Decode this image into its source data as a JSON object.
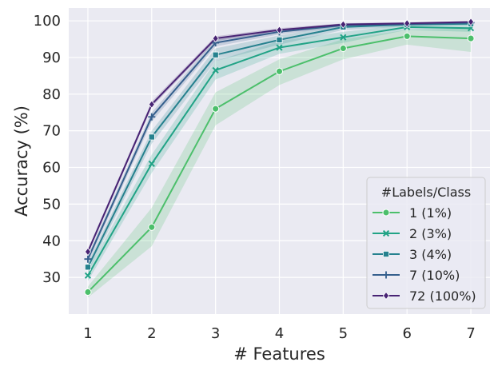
{
  "chart_data": {
    "type": "line",
    "xlabel": "# Features",
    "ylabel": "Accuracy (%)",
    "x": [
      1,
      2,
      3,
      4,
      5,
      6,
      7
    ],
    "xlim": [
      0.7,
      7.3
    ],
    "ylim": [
      20,
      103.5
    ],
    "xticks": [
      1,
      2,
      3,
      4,
      5,
      6,
      7
    ],
    "yticks": [
      30,
      40,
      50,
      60,
      70,
      80,
      90,
      100
    ],
    "grid": true,
    "legend_title": "#Labels/Class",
    "legend_position": "lower-right",
    "background": "#eaeaf2",
    "series": [
      {
        "name": "1 (1%)",
        "color": "#4cbf6b",
        "marker": "circle",
        "values": [
          26,
          43.7,
          76,
          86.2,
          92.5,
          95.8,
          95.2
        ],
        "ci_low": [
          24.5,
          38.5,
          71.5,
          82.5,
          89.5,
          93.5,
          91.5
        ],
        "ci_high": [
          27.5,
          49,
          80.5,
          89.5,
          95,
          97.5,
          98
        ]
      },
      {
        "name": "2 (3%)",
        "color": "#21a386",
        "marker": "x",
        "values": [
          30.5,
          61,
          86.5,
          92.7,
          95.5,
          98.3,
          98
        ],
        "ci_low": [
          29,
          58.5,
          84,
          91,
          94,
          97.5,
          97
        ],
        "ci_high": [
          32,
          63.5,
          89,
          94.5,
          97,
          99,
          99
        ]
      },
      {
        "name": "3 (4%)",
        "color": "#26818e",
        "marker": "square",
        "values": [
          32.8,
          68.3,
          90.7,
          94.8,
          98.3,
          99,
          99.2
        ],
        "ci_low": [
          31.5,
          66.5,
          89,
          93.5,
          97.5,
          98.5,
          98.8
        ],
        "ci_high": [
          34,
          70,
          92.5,
          96,
          99,
          99.5,
          99.6
        ]
      },
      {
        "name": "7 (10%)",
        "color": "#355f8d",
        "marker": "plus",
        "values": [
          35,
          73.8,
          94,
          97,
          98.8,
          99.1,
          99.5
        ],
        "ci_low": [
          34,
          72.5,
          93,
          96.3,
          98.3,
          98.7,
          99.2
        ],
        "ci_high": [
          36,
          75,
          95,
          97.7,
          99.3,
          99.5,
          99.8
        ]
      },
      {
        "name": "72 (100%)",
        "color": "#482374",
        "marker": "diamond",
        "values": [
          37,
          77.2,
          95.2,
          97.5,
          99,
          99.3,
          99.7
        ],
        "ci_low": [
          36.3,
          76.5,
          94.5,
          97,
          98.7,
          99,
          99.5
        ],
        "ci_high": [
          37.7,
          78,
          95.8,
          98,
          99.3,
          99.6,
          99.9
        ]
      }
    ]
  }
}
